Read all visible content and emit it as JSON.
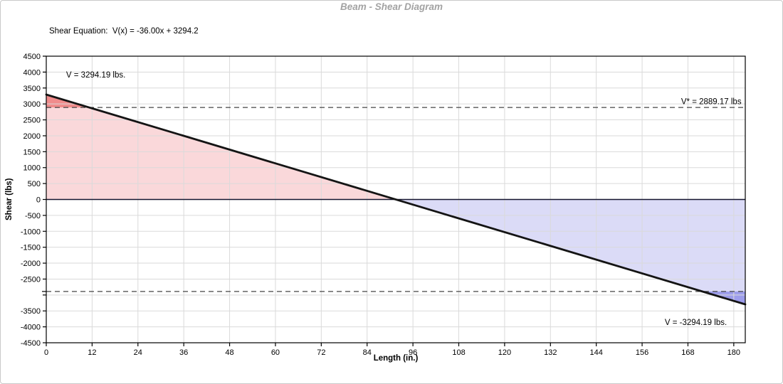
{
  "chart_data": {
    "type": "line",
    "title": "Beam - Shear Diagram",
    "equation_label": "Shear Equation:  V(x) = -36.00x + 3294.2",
    "xlabel": "Length (in.)",
    "ylabel": "Shear (lbs)",
    "xlim": [
      0,
      183.01
    ],
    "ylim": [
      -4500,
      4500
    ],
    "x_ticks": [
      0,
      12,
      24,
      36,
      48,
      60,
      72,
      84,
      96,
      108,
      120,
      132,
      144,
      156,
      168,
      180
    ],
    "y_tick_step": 500,
    "y_labels_omitted": [
      -3000
    ],
    "grid": true,
    "shear_line": {
      "slope": -36.0,
      "intercept": 3294.19,
      "x_start": 0,
      "x_end": 183.01
    },
    "key_values": {
      "v_start_lbs": 3294.19,
      "v_end_lbs": -3294.19,
      "v_allowable_lbs": 2889.17,
      "zero_crossing_in": 91.51
    },
    "annotations": [
      {
        "text": "V = 3294.19 lbs.",
        "x": 5.2,
        "v": 3830,
        "anchor": "start"
      },
      {
        "text": "V* = 2889.17 lbs",
        "x": 182.0,
        "v": 2990,
        "anchor": "end"
      },
      {
        "text": "V = -3294.19 lbs.",
        "x": 178.2,
        "v": -3940,
        "anchor": "end"
      }
    ],
    "colors": {
      "positive_fill": "#FAD8DA",
      "positive_overstress_fill": "#F08C8C",
      "negative_fill": "#DBDBF7",
      "negative_overstress_fill": "#9D9DEB",
      "grid": "#DADADA",
      "axis_border": "#000000",
      "zero_line": "#14142E",
      "shear_line": "#141414",
      "dashed_line": "#454545",
      "title": "#A3A3A3",
      "text": "#000000"
    }
  }
}
